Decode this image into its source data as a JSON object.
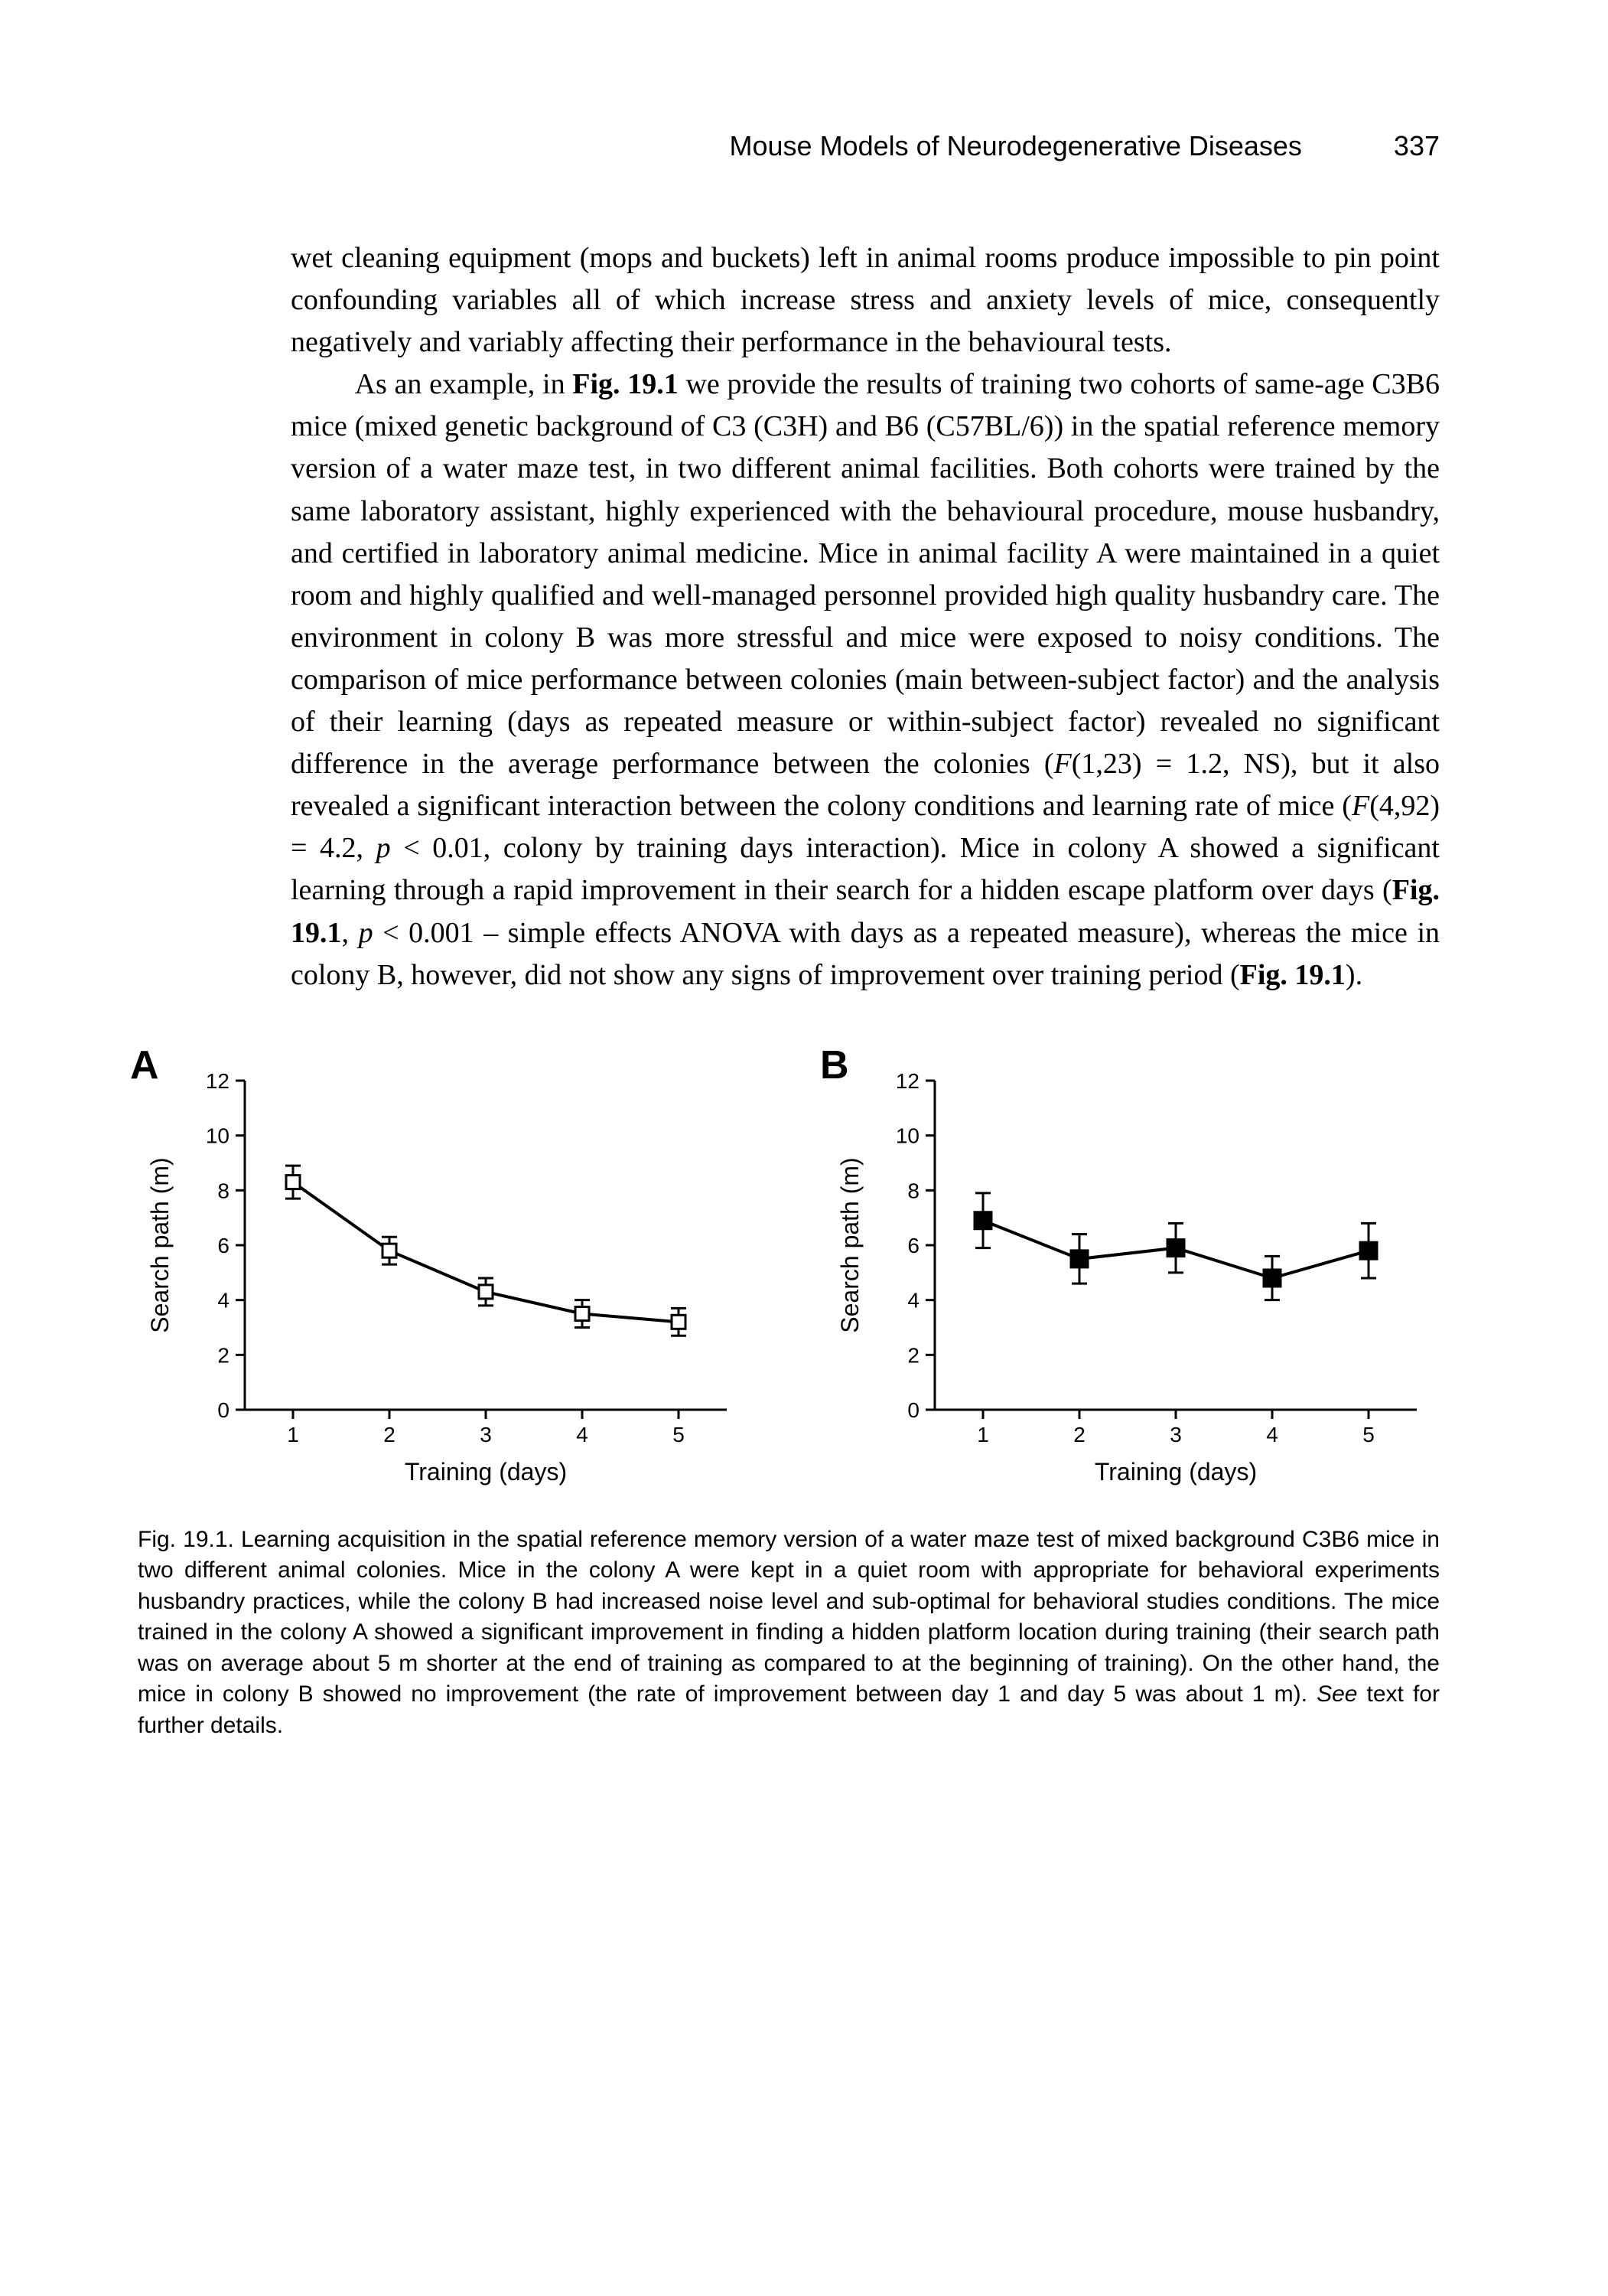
{
  "header": {
    "title": "Mouse Models of Neurodegenerative Diseases",
    "page_number": "337"
  },
  "body": {
    "p1_a": "wet cleaning equipment (mops and buckets) left in animal rooms produce impossible to pin point confounding variables all of which increase stress and anxiety levels of mice, consequently negatively and variably affecting their performance in the behavioural tests.",
    "p2_a": "As an example, in ",
    "p2_fig_ref1": "Fig. 19.1",
    "p2_b": " we provide the results of training two cohorts of same-age C3B6 mice (mixed genetic background of C3 (C3H) and B6 (C57BL/6)) in the spatial reference memory version of a water maze test, in two different animal facilities. Both cohorts were trained by the same laboratory assistant, highly experienced with the behavioural procedure, mouse husbandry, and certified in laboratory animal medicine. Mice in animal facility A were maintained in a quiet room and highly qualified and well-managed personnel provided high quality husbandry care. The environment in colony B was more stressful and mice were exposed to noisy conditions. The comparison of mice performance between colonies (main between-subject factor) and the analysis of their learning (days as repeated measure or within-subject factor) revealed no significant difference in the average performance between the colonies (",
    "p2_stat1": "F",
    "p2_c": "(1,23) = 1.2, NS), but it also revealed a significant interaction between the colony conditions and learning rate of mice (",
    "p2_stat2": "F",
    "p2_d": "(4,92) = 4.2, ",
    "p2_stat3": "p",
    "p2_e": " < 0.01, colony by training days interaction). Mice in colony A showed a significant learning through a rapid improvement in their search for a hidden escape platform over days (",
    "p2_fig_ref2": "Fig. 19.1",
    "p2_f": ", ",
    "p2_stat4": "p",
    "p2_g": " < 0.001 – simple effects ANOVA with days as a repeated measure), whereas the mice in colony B, however, did not show any signs of improvement over training period (",
    "p2_fig_ref3": "Fig. 19.1",
    "p2_h": ")."
  },
  "figure": {
    "panelA": {
      "label": "A",
      "type": "line-scatter",
      "x": [
        1,
        2,
        3,
        4,
        5
      ],
      "y": [
        8.3,
        5.8,
        4.3,
        3.5,
        3.2
      ],
      "yerr": [
        0.6,
        0.5,
        0.5,
        0.5,
        0.5
      ],
      "marker": "square-open",
      "marker_size": 18,
      "line_width": 4,
      "line_color": "#000000",
      "marker_fill": "#ffffff",
      "marker_stroke": "#000000",
      "xlim": [
        0.5,
        5.5
      ],
      "ylim": [
        0,
        12
      ],
      "yticks": [
        0,
        2,
        4,
        6,
        8,
        10,
        12
      ],
      "xticks": [
        1,
        2,
        3,
        4,
        5
      ],
      "ylabel": "Search path (m)",
      "xlabel": "Training (days)",
      "axis_color": "#000000",
      "axis_width": 3,
      "tick_fontsize": 28,
      "label_fontsize": 32,
      "background": "#ffffff"
    },
    "panelB": {
      "label": "B",
      "type": "line-scatter",
      "x": [
        1,
        2,
        3,
        4,
        5
      ],
      "y": [
        6.9,
        5.5,
        5.9,
        4.8,
        5.8
      ],
      "yerr": [
        1.0,
        0.9,
        0.9,
        0.8,
        1.0
      ],
      "marker": "square-filled",
      "marker_size": 22,
      "line_width": 4,
      "line_color": "#000000",
      "marker_fill": "#000000",
      "marker_stroke": "#000000",
      "xlim": [
        0.5,
        5.5
      ],
      "ylim": [
        0,
        12
      ],
      "yticks": [
        0,
        2,
        4,
        6,
        8,
        10,
        12
      ],
      "xticks": [
        1,
        2,
        3,
        4,
        5
      ],
      "ylabel": "Search path (m)",
      "xlabel": "Training (days)",
      "axis_color": "#000000",
      "axis_width": 3,
      "tick_fontsize": 28,
      "label_fontsize": 32,
      "background": "#ffffff"
    },
    "caption_a": "Fig. 19.1. Learning acquisition in the spatial reference memory version of a water maze test of mixed background C3B6 mice in two different animal colonies. Mice in the colony A were kept in a quiet room with appropriate for behavioral experiments husbandry practices, while the colony B had increased noise level and sub-optimal for behavioral studies conditions. The mice trained in the colony A showed a significant improvement in finding a hidden platform location during training (their search path was on average about 5 m shorter at the end of training as compared to at the beginning of training). On the other hand, the mice in colony B showed no improvement (the rate of improvement between day 1 and day 5 was about 1 m). ",
    "caption_see": "See",
    "caption_b": " text for further details."
  }
}
